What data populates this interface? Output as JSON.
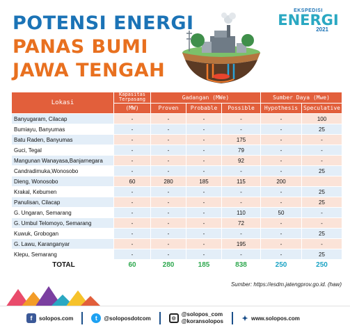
{
  "title": {
    "line1": "POTENSI ENERGI",
    "line2": "PANAS BUMI",
    "line3": "JAWA TENGAH"
  },
  "brand": {
    "top": "EKSPEDISI",
    "main": "ENERGI",
    "year": "2021"
  },
  "colors": {
    "header": "#e25f3b",
    "title_blue": "#1b73b6",
    "title_orange": "#e8701f",
    "total_green": "#2fa84f",
    "total_blue": "#1aa3c4"
  },
  "table": {
    "headers": {
      "lokasi": "Lokasi",
      "kapasitas": "Kapasitas Terpasang",
      "cadangan": "Gadangan (MWe)",
      "sumber_daya": "Sumber Daya (Mwe)",
      "kap_unit": "(MW)",
      "proven": "Proven",
      "probable": "Probable",
      "possible": "Possible",
      "hypothesis": "Hypothesis",
      "speculative": "Speculative"
    },
    "rows": [
      [
        "Banyugaram, Cilacap",
        "-",
        "-",
        "-",
        "-",
        "-",
        "100"
      ],
      [
        "Bumiayu, Banyumas",
        "-",
        "-",
        "-",
        "-",
        "-",
        "25"
      ],
      [
        "Batu Raden, Banyumas",
        "-",
        "-",
        "-",
        "175",
        "-",
        "-"
      ],
      [
        "Guci, Tegal",
        "-",
        "-",
        "-",
        "79",
        "-",
        "-"
      ],
      [
        "Mangunan Wanayasa,Banjarnegara",
        "-",
        "-",
        "-",
        "92",
        "-",
        "-"
      ],
      [
        "Candradimuka,Wonosobo",
        "-",
        "-",
        "-",
        "-",
        "-",
        "25"
      ],
      [
        "Dieng, Wonosobo",
        "60",
        "280",
        "185",
        "115",
        "200",
        ""
      ],
      [
        "Krakal, Kebumen",
        "-",
        "-",
        "-",
        "-",
        "-",
        "25"
      ],
      [
        "Panulisan, Cilacap",
        "-",
        "-",
        "-",
        "-",
        "-",
        "25"
      ],
      [
        "G. Ungaran, Semarang",
        "-",
        "-",
        "-",
        "110",
        "50",
        "-"
      ],
      [
        "G. Umbul Telomoyo, Semarang",
        "-",
        "-",
        "-",
        "72",
        "-",
        "-"
      ],
      [
        "Kuwuk, Grobogan",
        "-",
        "-",
        "-",
        "-",
        "-",
        "25"
      ],
      [
        "G. Lawu, Karanganyar",
        "-",
        "-",
        "-",
        "195",
        "-",
        "-"
      ],
      [
        "Klepu, Semarang",
        "-",
        "-",
        "-",
        "-",
        "-",
        "25"
      ]
    ],
    "total": [
      "TOTAL",
      "60",
      "280",
      "185",
      "838",
      "250",
      "250"
    ]
  },
  "source": "Sumber: https://esdm.jatengprov.go.id. (haw)",
  "footer": {
    "facebook": "solopos.com",
    "twitter": "@soloposdotcom",
    "instagram1": "@solopos_com",
    "instagram2": "@koransolopos",
    "web": "www.solopos.com",
    "icons": [
      "facebook-icon",
      "twitter-icon",
      "instagram-icon",
      "web-icon"
    ]
  }
}
